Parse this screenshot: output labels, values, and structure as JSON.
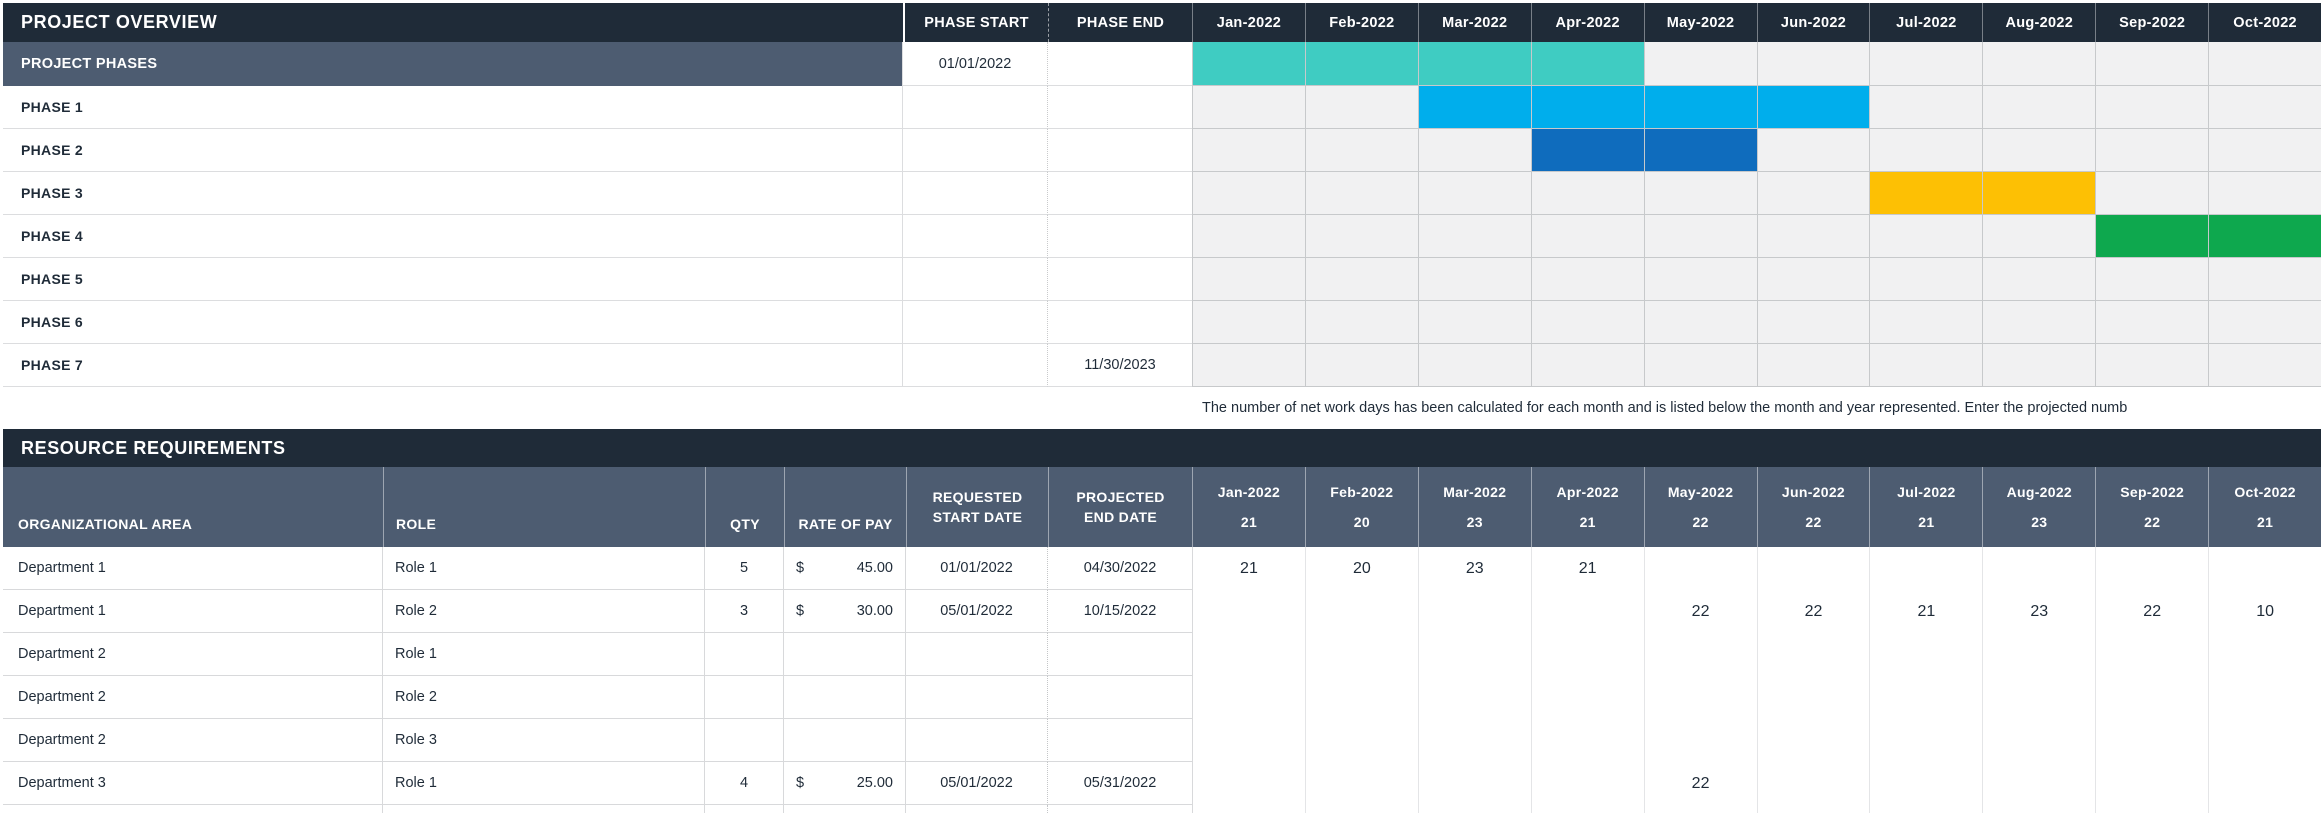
{
  "colors": {
    "header_bg": "#1f2b38",
    "subheader_bg": "#4d5c71",
    "gantt_track_bg": "#f1f1f2",
    "bar_teal": "#3fccc2",
    "bar_light_blue": "#00aeec",
    "bar_dark_blue": "#0f6cbd",
    "bar_yellow": "#fdc004",
    "bar_green": "#0ea84e"
  },
  "gantt": {
    "title": "PROJECT OVERVIEW",
    "phase_start_header": "PHASE START",
    "phase_end_header": "PHASE END",
    "months": [
      "Jan-2022",
      "Feb-2022",
      "Mar-2022",
      "Apr-2022",
      "May-2022",
      "Jun-2022",
      "Jul-2022",
      "Aug-2022",
      "Sep-2022",
      "Oct-2022"
    ],
    "rows": [
      {
        "label": "PROJECT PHASES",
        "start": "01/01/2022",
        "end": "",
        "summary": true,
        "bar": {
          "from": 0,
          "to": 3,
          "color": "#3fccc2"
        }
      },
      {
        "label": "PHASE 1",
        "start": "",
        "end": "",
        "bar": {
          "from": 2,
          "to": 5,
          "color": "#00aeec"
        }
      },
      {
        "label": "PHASE 2",
        "start": "",
        "end": "",
        "bar": {
          "from": 3,
          "to": 4,
          "color": "#0f6cbd"
        }
      },
      {
        "label": "PHASE 3",
        "start": "",
        "end": "",
        "bar": {
          "from": 6,
          "to": 7,
          "color": "#fdc004"
        }
      },
      {
        "label": "PHASE 4",
        "start": "",
        "end": "",
        "bar": {
          "from": 8,
          "to": 9,
          "color": "#0ea84e"
        }
      },
      {
        "label": "PHASE 5",
        "start": "",
        "end": "",
        "bar": null
      },
      {
        "label": "PHASE 6",
        "start": "",
        "end": "",
        "bar": null
      },
      {
        "label": "PHASE 7",
        "start": "",
        "end": "11/30/2023",
        "bar": null
      }
    ]
  },
  "note": "The number of net work days has been calculated for each month and is listed below the month and year represented. Enter the projected numb",
  "resources": {
    "title": "RESOURCE REQUIREMENTS",
    "currency_symbol": "$",
    "columns": [
      "ORGANIZATIONAL AREA",
      "ROLE",
      "QTY",
      "RATE OF PAY",
      "REQUESTED START DATE",
      "PROJECTED END DATE"
    ],
    "months": [
      {
        "label": "Jan-2022",
        "workdays": "21"
      },
      {
        "label": "Feb-2022",
        "workdays": "20"
      },
      {
        "label": "Mar-2022",
        "workdays": "23"
      },
      {
        "label": "Apr-2022",
        "workdays": "21"
      },
      {
        "label": "May-2022",
        "workdays": "22"
      },
      {
        "label": "Jun-2022",
        "workdays": "22"
      },
      {
        "label": "Jul-2022",
        "workdays": "21"
      },
      {
        "label": "Aug-2022",
        "workdays": "23"
      },
      {
        "label": "Sep-2022",
        "workdays": "22"
      },
      {
        "label": "Oct-2022",
        "workdays": "21"
      }
    ],
    "rows": [
      {
        "area": "Department 1",
        "role": "Role 1",
        "qty": "5",
        "rate": "45.00",
        "start": "01/01/2022",
        "end": "04/30/2022",
        "values": [
          "21",
          "20",
          "23",
          "21",
          "",
          "",
          "",
          "",
          "",
          ""
        ]
      },
      {
        "area": "Department 1",
        "role": "Role 2",
        "qty": "3",
        "rate": "30.00",
        "start": "05/01/2022",
        "end": "10/15/2022",
        "values": [
          "",
          "",
          "",
          "",
          "22",
          "22",
          "21",
          "23",
          "22",
          "10"
        ]
      },
      {
        "area": "Department 2",
        "role": "Role 1",
        "qty": "",
        "rate": "",
        "start": "",
        "end": "",
        "values": [
          "",
          "",
          "",
          "",
          "",
          "",
          "",
          "",
          "",
          ""
        ]
      },
      {
        "area": "Department 2",
        "role": "Role 2",
        "qty": "",
        "rate": "",
        "start": "",
        "end": "",
        "values": [
          "",
          "",
          "",
          "",
          "",
          "",
          "",
          "",
          "",
          ""
        ]
      },
      {
        "area": "Department 2",
        "role": "Role 3",
        "qty": "",
        "rate": "",
        "start": "",
        "end": "",
        "values": [
          "",
          "",
          "",
          "",
          "",
          "",
          "",
          "",
          "",
          ""
        ]
      },
      {
        "area": "Department 3",
        "role": "Role 1",
        "qty": "4",
        "rate": "25.00",
        "start": "05/01/2022",
        "end": "05/31/2022",
        "values": [
          "",
          "",
          "",
          "",
          "22",
          "",
          "",
          "",
          "",
          ""
        ]
      }
    ]
  }
}
